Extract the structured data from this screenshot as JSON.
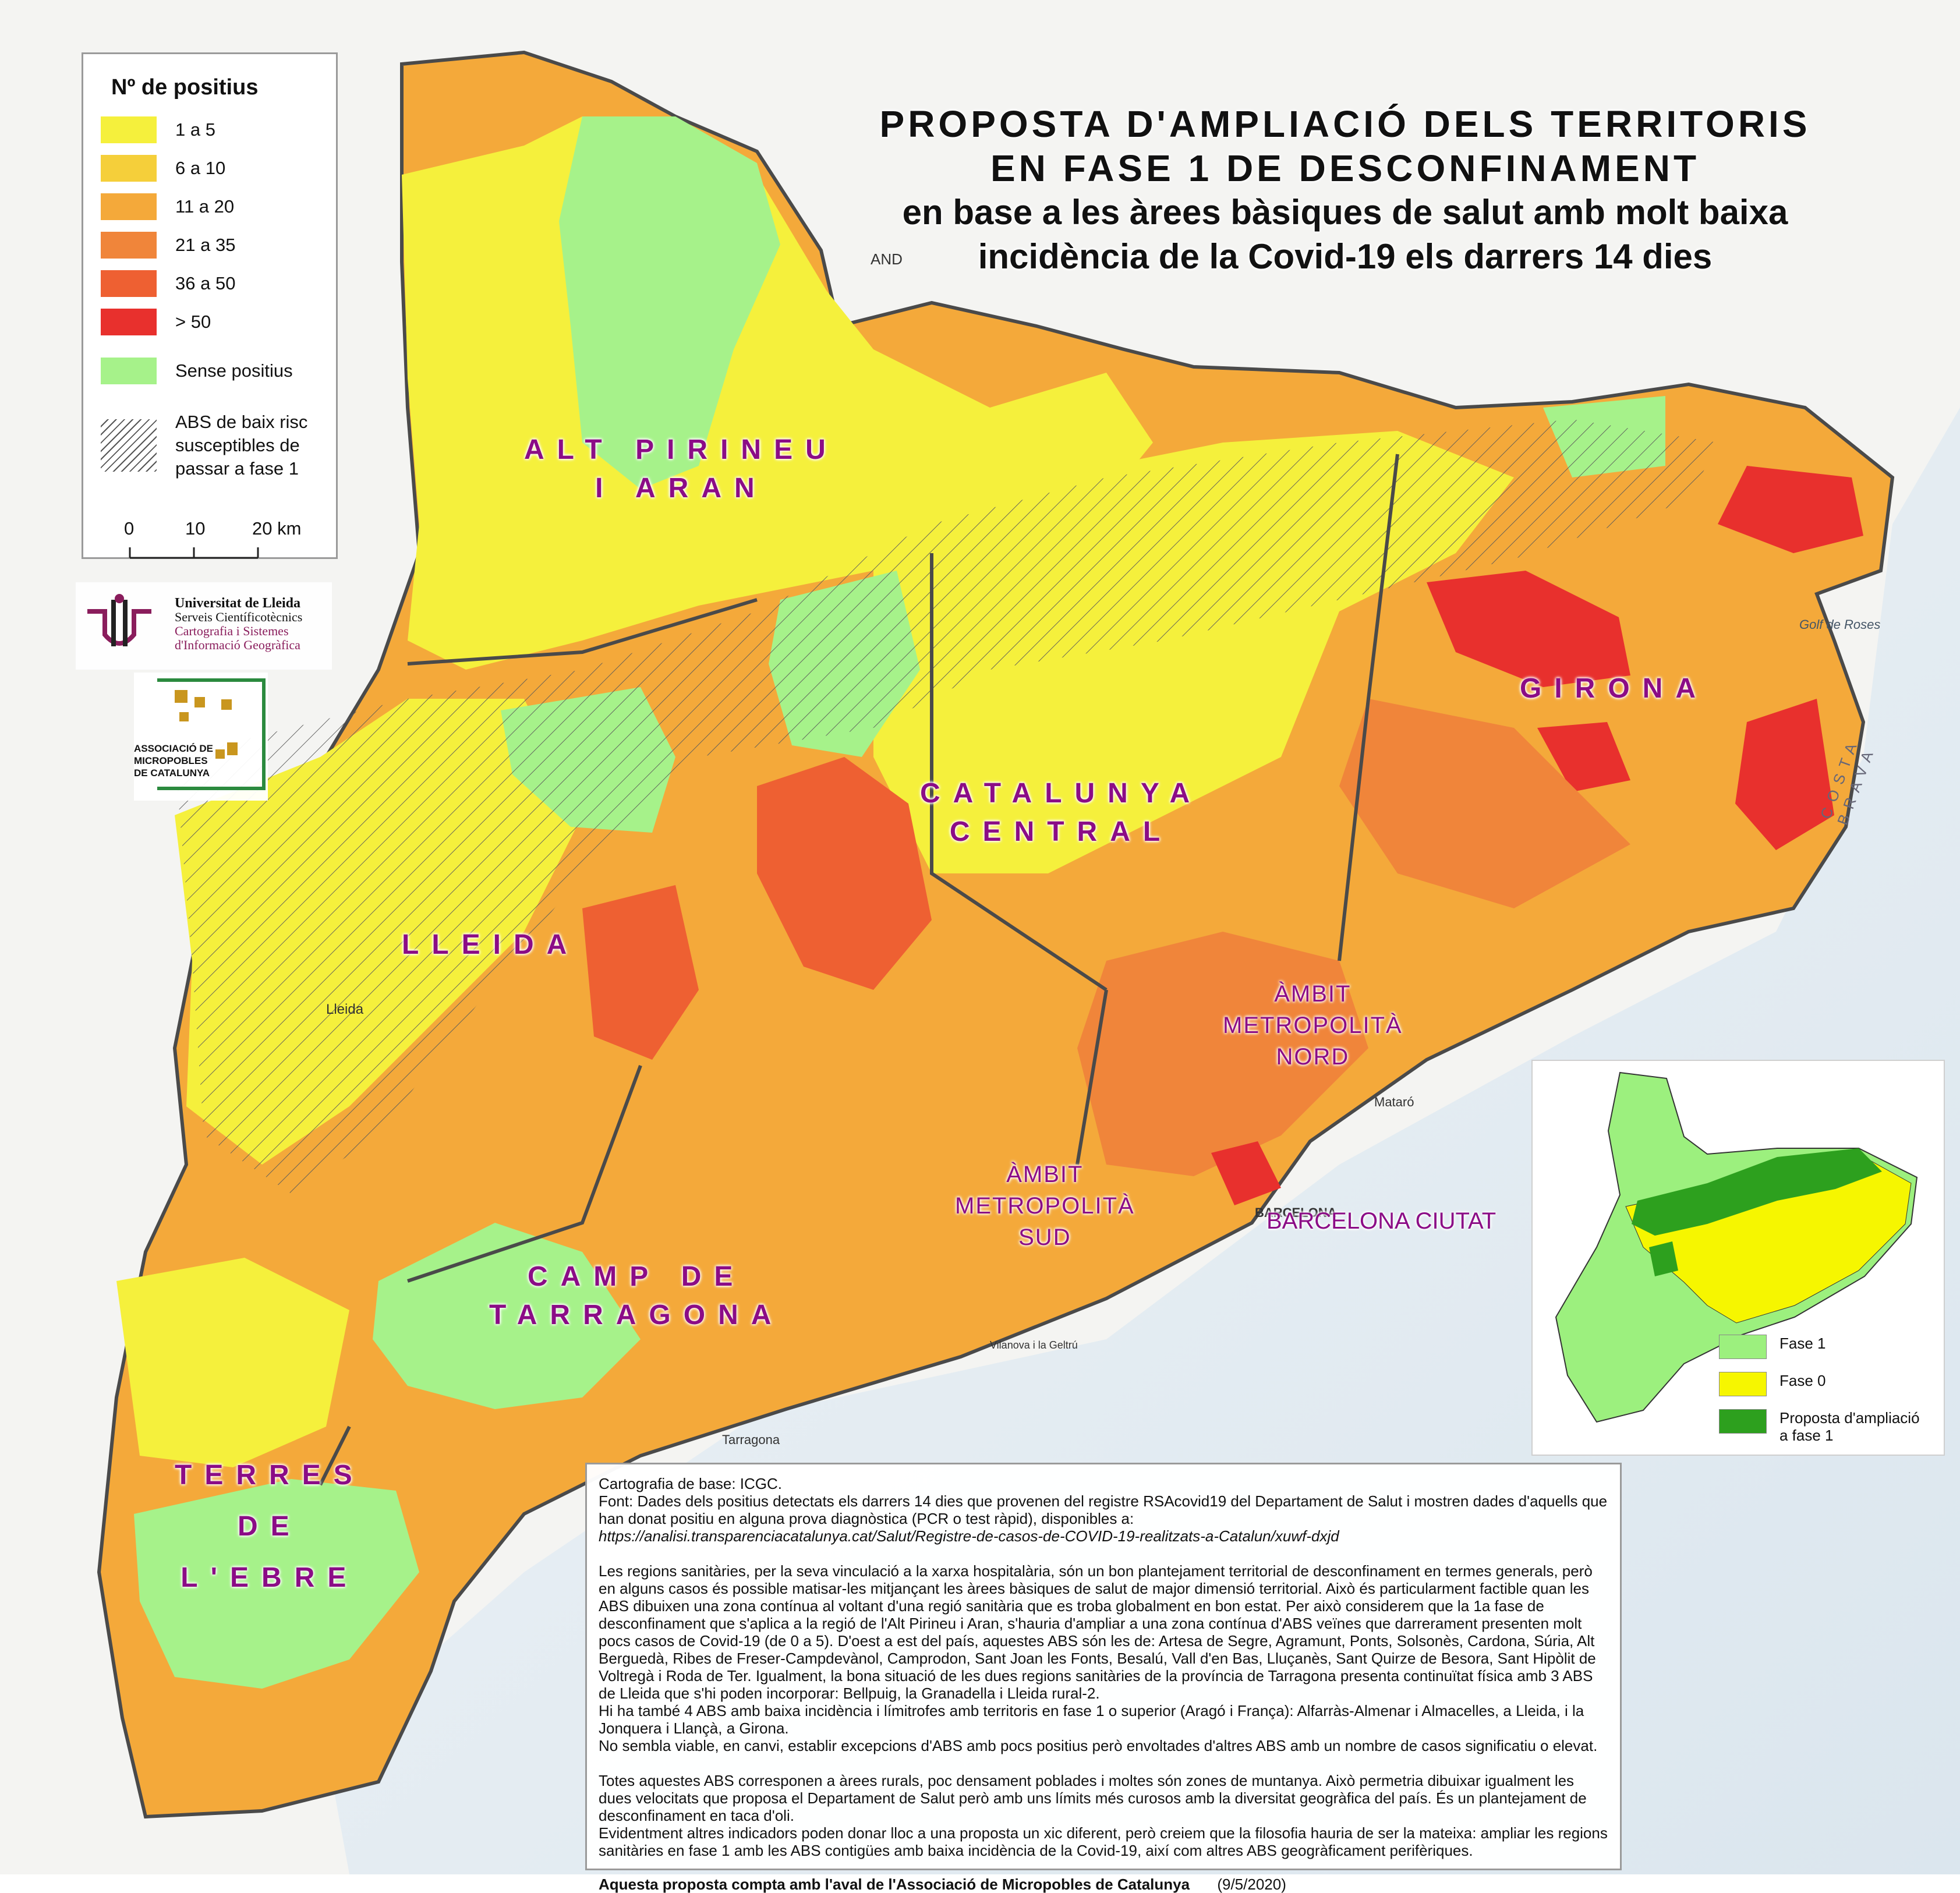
{
  "title": {
    "line1": "PROPOSTA D'AMPLIACIÓ DELS TERRITORIS",
    "line2": "EN FASE 1 DE DESCONFINAMENT",
    "line3": "en base a les àrees bàsiques de salut amb molt baixa",
    "line4": "incidència de la Covid-19  els darrers 14 dies"
  },
  "legend": {
    "heading": "Nº de positius",
    "items": [
      {
        "label": "1 a 5",
        "color": "#f5f03c"
      },
      {
        "label": "6 a 10",
        "color": "#f5cf3a"
      },
      {
        "label": "11 a 20",
        "color": "#f4a93a"
      },
      {
        "label": "21 a 35",
        "color": "#f0853a"
      },
      {
        "label": "36 a 50",
        "color": "#ee6032"
      },
      {
        "label": "> 50",
        "color": "#e8302d"
      },
      {
        "label": "Sense positius",
        "color": "#a6f28a"
      }
    ],
    "hatch_label_1": "ABS de baix risc",
    "hatch_label_2": "susceptibles de",
    "hatch_label_3": "passar a fase 1",
    "scale": {
      "t0": "0",
      "t1": "10",
      "t2": "20 km"
    }
  },
  "logos": {
    "uni_line1": "Universitat de Lleida",
    "uni_line2": "Serveis Científicotècnics",
    "uni_line3": "Cartografia i Sistemes",
    "uni_line4": "d'Informació Geogràfica",
    "micro_line1": "ASSOCIACIÓ DE",
    "micro_line2": "MICROPOBLES",
    "micro_line3": "DE CATALUNYA"
  },
  "regions": {
    "alt_pirineu": "ALT PIRINEU\nI ARAN",
    "lleida": "LLEIDA",
    "catalunya_central": "CATALUNYA\nCENTRAL",
    "girona": "GIRONA",
    "metro_nord": "ÀMBIT\nMETROPOLITÀ\nNORD",
    "metro_sud": "ÀMBIT\nMETROPOLITÀ\nSUD",
    "barcelona": "BARCELONA CIUTAT",
    "camp_tarragona": "CAMP DE\nTARRAGONA",
    "terres_ebre": "TERRES\nDE\nL'EBRE"
  },
  "places": {
    "lleida": "Lleida",
    "tarragona": "Tarragona",
    "barcelona": "BARCELONA",
    "mataro": "Mataró",
    "golf_roses": "Golf de Roses",
    "costa_brava": "COSTA BRAVA",
    "andorra": "AND",
    "vilanova": "Vilanova i la Geltrú"
  },
  "inset": {
    "legend": [
      {
        "label": "Fase 1",
        "color": "#9cf07e"
      },
      {
        "label": "Fase 0",
        "color": "#f6f600"
      },
      {
        "label": "Proposta d'ampliació a fase 1",
        "color": "#2da01e"
      }
    ]
  },
  "notes": {
    "p1": "Cartografia de base: ICGC.",
    "p2": "Font: Dades dels positius detectats els darrers 14 dies que provenen del registre RSAcovid19 del Departament de Salut i mostren dades d'aquells que han donat positiu en alguna prova diagnòstica (PCR o test ràpid), disponibles a:",
    "url": "https://analisi.transparenciacatalunya.cat/Salut/Registre-de-casos-de-COVID-19-realitzats-a-Catalun/xuwf-dxjd",
    "p3": "Les regions sanitàries, per la seva vinculació a la xarxa hospitalària, són un bon plantejament territorial de desconfinament en termes generals, però en alguns casos és possible matisar-les mitjançant les àrees bàsiques de salut de major dimensió territorial. Això és particularment factible quan les ABS dibuixen una zona contínua al voltant d'una regió sanitària que es troba globalment en bon estat. Per això considerem que la 1a fase de desconfinament que s'aplica a la regió de l'Alt Pirineu i Aran, s'hauria d'ampliar a una zona contínua d'ABS veïnes que darrerament presenten molt pocs casos de Covid-19 (de 0 a 5). D'oest a est del país, aquestes ABS són les de: Artesa de Segre, Agramunt, Ponts, Solsonès, Cardona, Súria, Alt Berguedà, Ribes de Freser-Campdevànol, Camprodon, Sant Joan les Fonts, Besalú, Vall d'en Bas, Lluçanès, Sant Quirze de Besora, Sant Hipòlit de Voltregà i Roda de Ter. Igualment, la bona situació de les dues regions sanitàries de la província de Tarragona presenta continuïtat física amb 3 ABS de Lleida que s'hi poden incorporar: Bellpuig, la Granadella i Lleida rural-2.",
    "p4": "Hi ha també 4 ABS amb baixa incidència i límitrofes amb territoris en fase 1 o superior (Aragó i França): Alfarràs-Almenar i Almacelles, a Lleida, i la Jonquera i Llançà, a Girona.",
    "p5": "No sembla viable, en canvi, establir excepcions d'ABS amb pocs positius però envoltades d'altres ABS amb un nombre de casos significatiu o elevat.",
    "p6": "Totes aquestes ABS corresponen a àrees rurals, poc densament poblades i moltes són zones de muntanya. Això permetria dibuixar igualment les dues velocitats que proposa el Departament de Salut però amb uns límits més curosos amb la diversitat geogràfica del país. És un plantejament de desconfinament en taca d'oli.",
    "p7": "Evidentment altres indicadors poden donar lloc a una proposta un xic diferent, però creiem que la filosofia hauria de ser la mateixa: ampliar les regions sanitàries en fase 1 amb les ABS contigües amb baixa incidència de la Covid-19, així com altres ABS geogràficament perifèriques.",
    "foot": "Aquesta proposta compta amb l'aval de l'Associació de Micropobles de Catalunya",
    "date": "(9/5/2020)"
  }
}
